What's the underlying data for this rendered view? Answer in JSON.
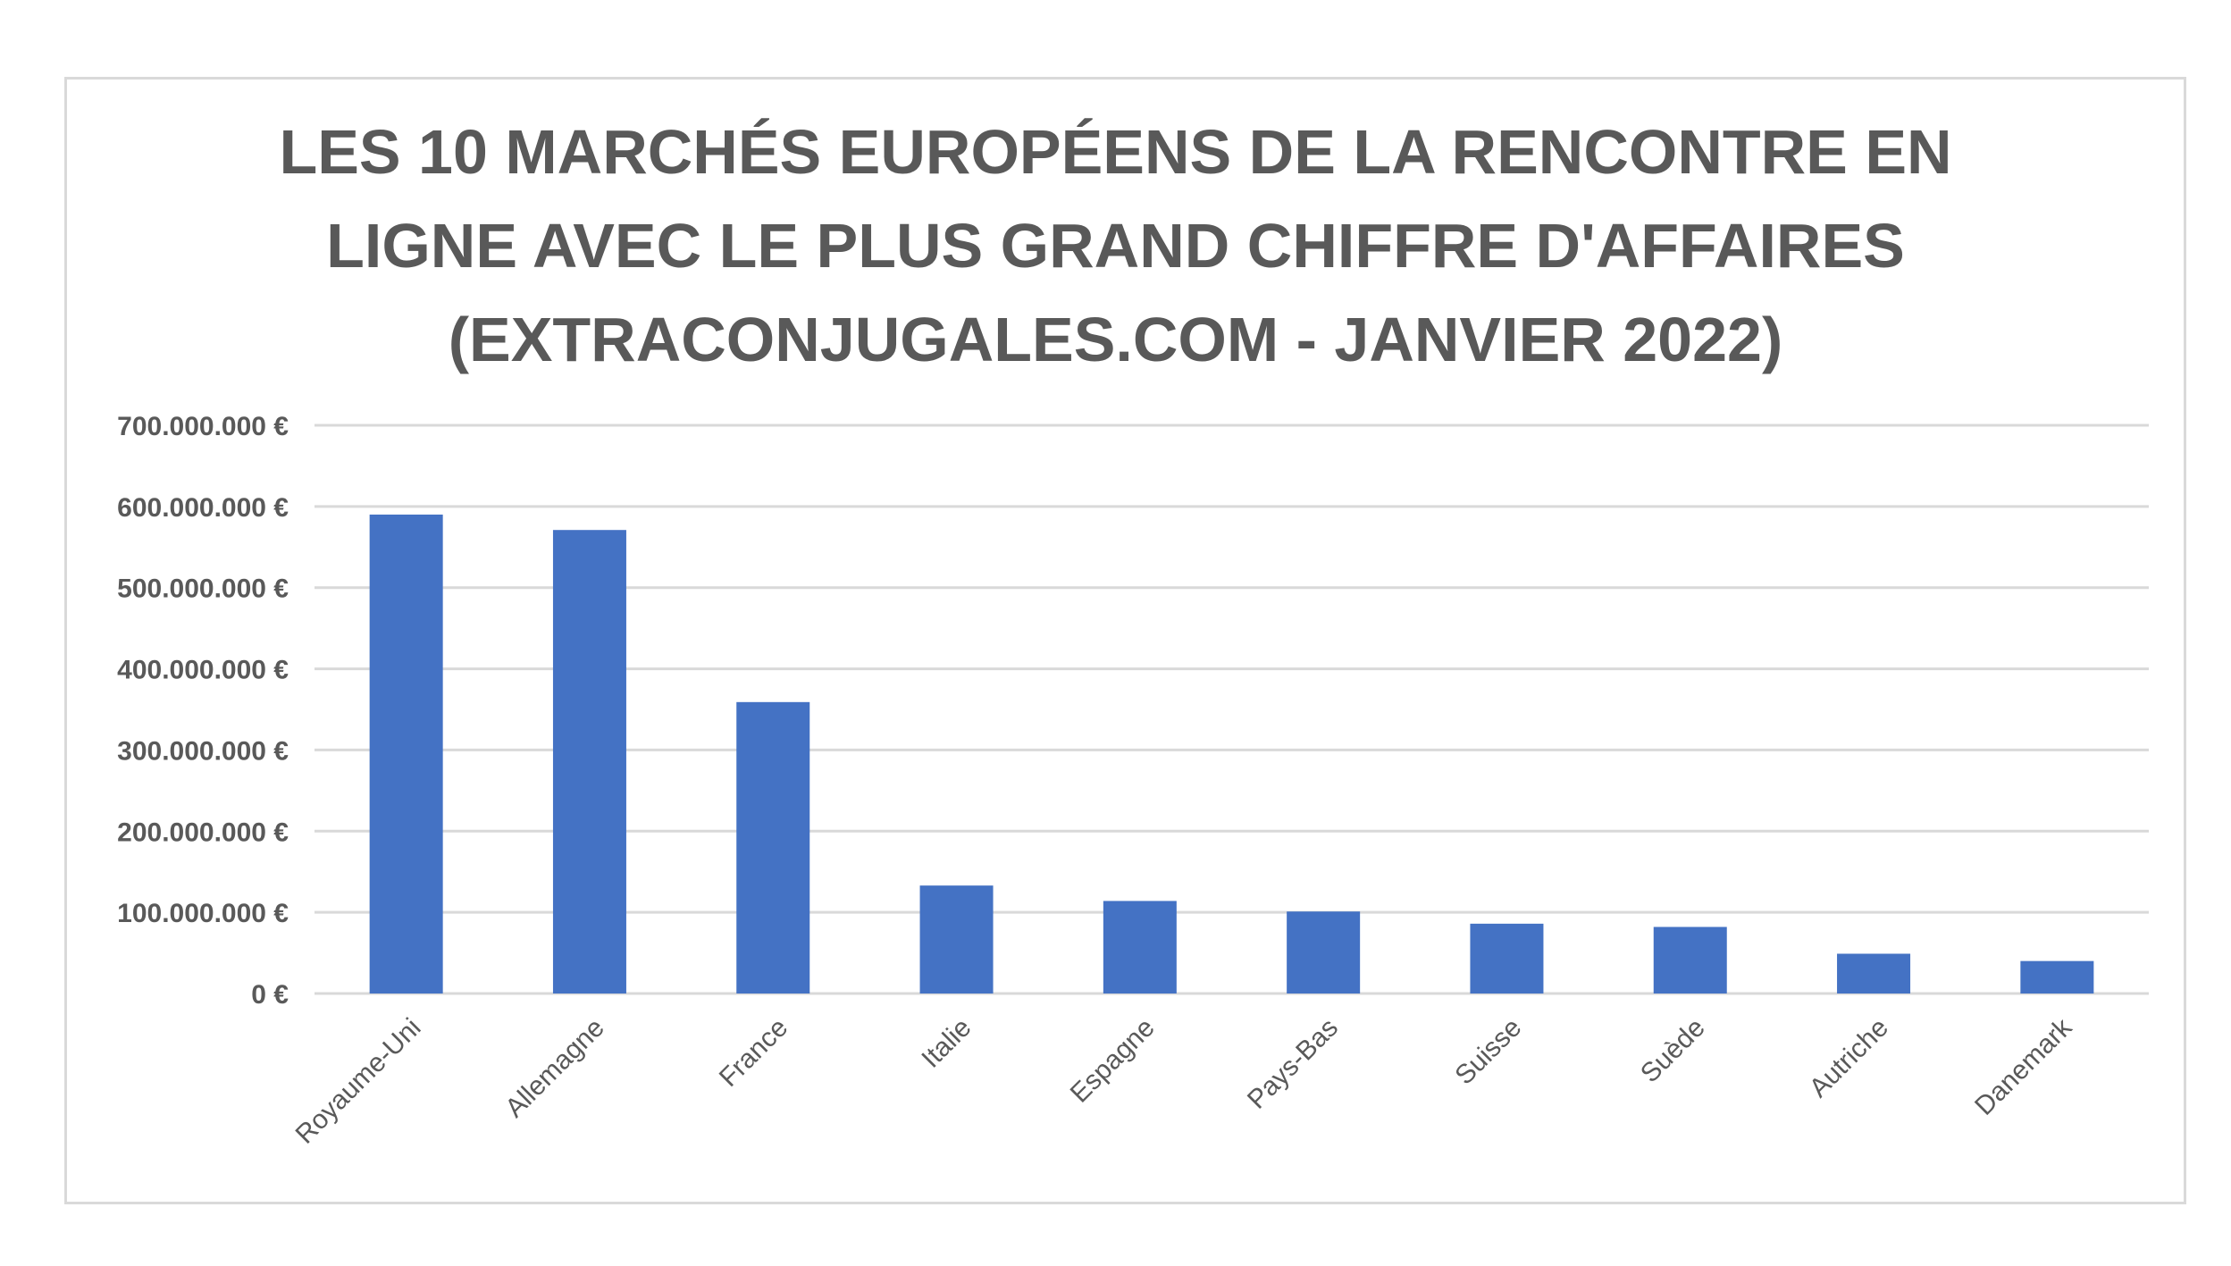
{
  "chart_data": {
    "type": "bar",
    "title_lines": [
      "LES 10 MARCHÉS EUROPÉENS DE LA RENCONTRE EN",
      "LIGNE AVEC LE PLUS GRAND CHIFFRE D'AFFAIRES",
      "(EXTRACONJUGALES.COM - JANVIER 2022)"
    ],
    "categories": [
      "Royaume-Uni",
      "Allemagne",
      "France",
      "Italie",
      "Espagne",
      "Pays-Bas",
      "Suisse",
      "Suède",
      "Autriche",
      "Danemark"
    ],
    "values": [
      590000000,
      571000000,
      359000000,
      133000000,
      114000000,
      101000000,
      86000000,
      82000000,
      49000000,
      40000000
    ],
    "ylim": [
      0,
      700000000
    ],
    "y_ticks": [
      {
        "value": 0,
        "label": "0 €"
      },
      {
        "value": 100000000,
        "label": "100.000.000 €"
      },
      {
        "value": 200000000,
        "label": "200.000.000 €"
      },
      {
        "value": 300000000,
        "label": "300.000.000 €"
      },
      {
        "value": 400000000,
        "label": "400.000.000 €"
      },
      {
        "value": 500000000,
        "label": "500.000.000 €"
      },
      {
        "value": 600000000,
        "label": "600.000.000 €"
      },
      {
        "value": 700000000,
        "label": "700.000.000 €"
      }
    ],
    "xlabel": "",
    "ylabel": "",
    "grid": true,
    "legend": "none",
    "bar_color": "#4472c4",
    "grid_color": "#d9d9d9",
    "text_color": "#595959"
  }
}
